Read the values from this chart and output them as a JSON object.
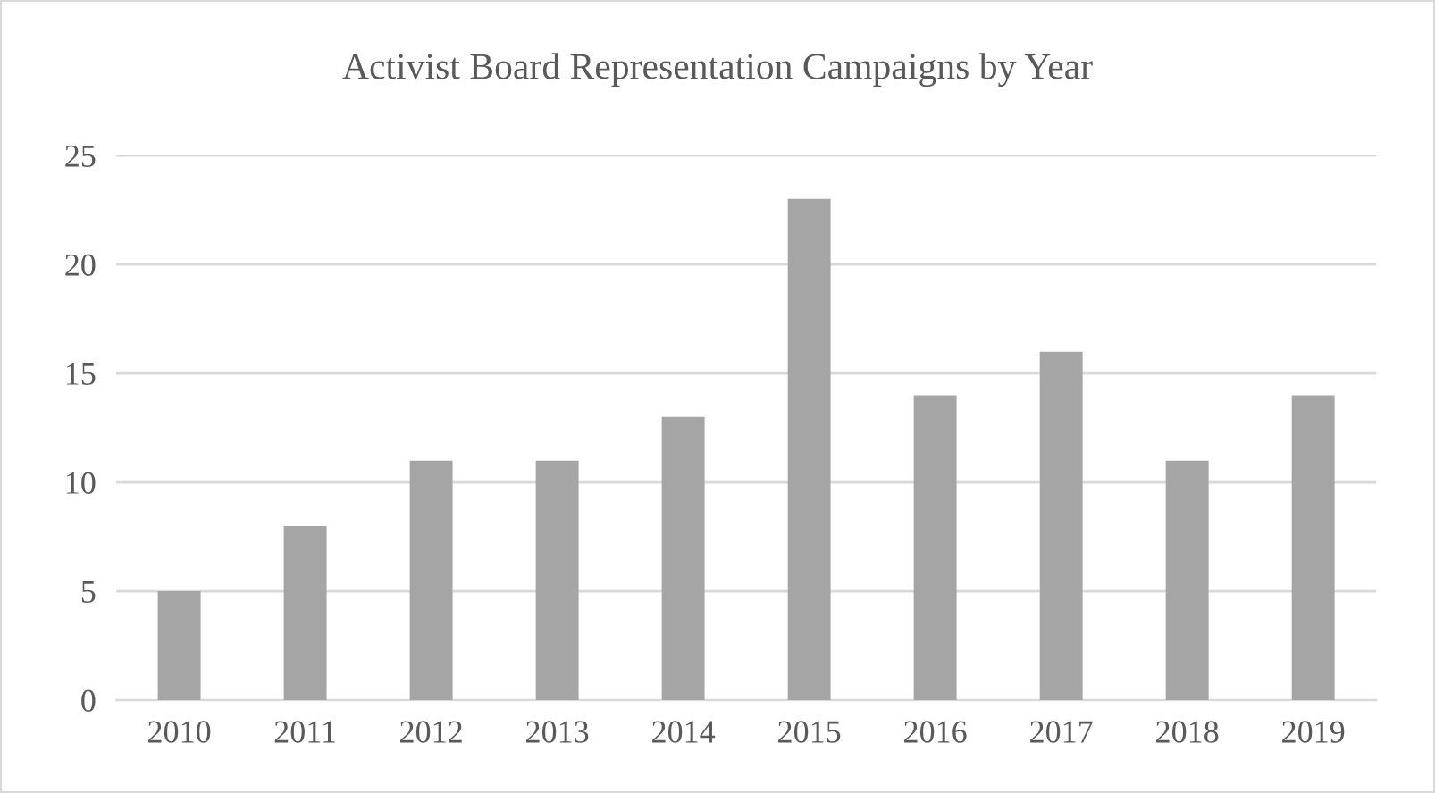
{
  "chart_data": {
    "type": "bar",
    "title": "Activist Board Representation Campaigns by Year",
    "categories": [
      "2010",
      "2011",
      "2012",
      "2013",
      "2014",
      "2015",
      "2016",
      "2017",
      "2018",
      "2019"
    ],
    "values": [
      5,
      8,
      11,
      11,
      13,
      23,
      14,
      16,
      11,
      14
    ],
    "color": "#a5a5a5",
    "ylim": [
      0,
      25
    ],
    "yticks": [
      0,
      5,
      10,
      15,
      20,
      25
    ],
    "grid": "y",
    "legend": false
  }
}
